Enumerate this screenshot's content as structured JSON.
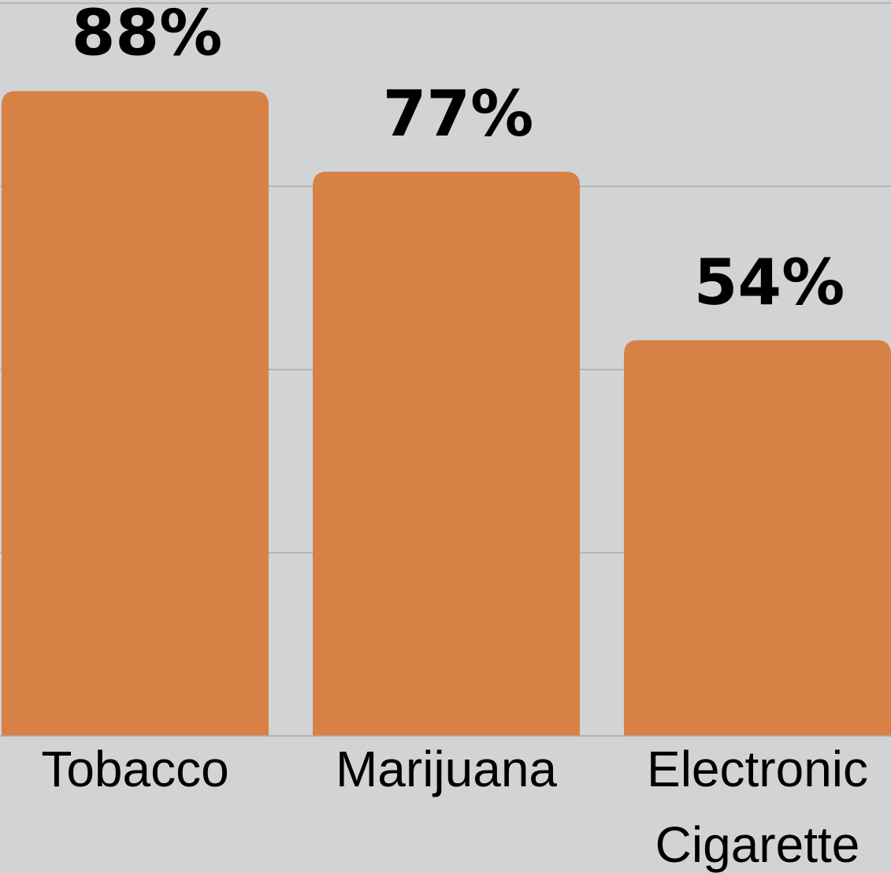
{
  "chart_data": {
    "type": "bar",
    "categories": [
      {
        "lines": [
          "Tobacco"
        ]
      },
      {
        "lines": [
          "Marijuana"
        ]
      },
      {
        "lines": [
          "Electronic",
          "Cigarette"
        ]
      }
    ],
    "values": [
      88,
      77,
      54
    ],
    "value_labels": [
      "88%",
      "77%",
      "54%"
    ],
    "title": "",
    "xlabel": "",
    "ylabel": "",
    "ylim": [
      0,
      100
    ],
    "gridlines": [
      25,
      50,
      75,
      100
    ],
    "grid": true,
    "legend": "none",
    "colors": {
      "bar": "#d78147",
      "background": "#d1d3d4",
      "grid": "#a9abae",
      "text": "#000000"
    }
  }
}
